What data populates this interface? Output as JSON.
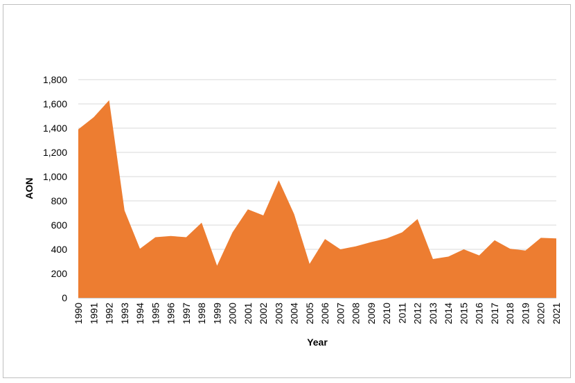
{
  "chart_data": {
    "type": "area",
    "title": "",
    "xlabel": "Year",
    "ylabel": "AON",
    "ylim": [
      0,
      1800
    ],
    "yticks": [
      "0",
      "200",
      "400",
      "600",
      "800",
      "1,000",
      "1,200",
      "1,400",
      "1,600",
      "1,800"
    ],
    "ytick_values": [
      0,
      200,
      400,
      600,
      800,
      1000,
      1200,
      1400,
      1600,
      1800
    ],
    "grid": true,
    "legend": "none",
    "x": [
      "1990",
      "1991",
      "1992",
      "1993",
      "1994",
      "1995",
      "1996",
      "1997",
      "1998",
      "1999",
      "2000",
      "2001",
      "2002",
      "2003",
      "2004",
      "2005",
      "2006",
      "2007",
      "2008",
      "2009",
      "2010",
      "2011",
      "2012",
      "2013",
      "2014",
      "2015",
      "2016",
      "2017",
      "2018",
      "2019",
      "2020",
      "2021"
    ],
    "series": [
      {
        "name": "AON",
        "color": "#ED7D31",
        "values": [
          1390,
          1490,
          1630,
          720,
          405,
          500,
          510,
          500,
          620,
          265,
          540,
          730,
          680,
          970,
          690,
          280,
          485,
          400,
          425,
          460,
          490,
          540,
          650,
          320,
          340,
          400,
          350,
          475,
          405,
          390,
          495,
          490
        ]
      }
    ]
  }
}
